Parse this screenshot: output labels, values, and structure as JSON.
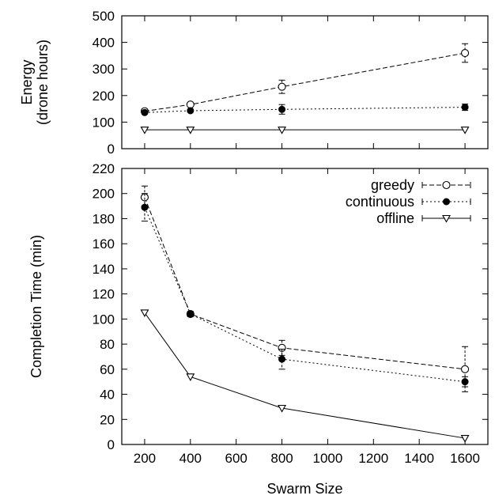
{
  "chart_data": [
    {
      "type": "line",
      "title": "",
      "ylabel": [
        "Energy",
        "(drone hours)"
      ],
      "xlabel": "",
      "xlim": [
        100,
        1700
      ],
      "ylim": [
        0,
        500
      ],
      "x_ticks": [
        200,
        400,
        600,
        800,
        1000,
        1200,
        1400,
        1600
      ],
      "y_ticks": [
        0,
        100,
        200,
        300,
        400,
        500
      ],
      "show_x_tick_labels": false,
      "grid": false,
      "x": [
        200,
        400,
        800,
        1600
      ],
      "series": [
        {
          "name": "greedy",
          "style": "dashed",
          "marker": "open-circle",
          "values": [
            141,
            166,
            233,
            360
          ],
          "err": [
            7,
            6,
            25,
            35
          ]
        },
        {
          "name": "continuous",
          "style": "dotted",
          "marker": "filled-circle",
          "values": [
            136,
            143,
            148,
            156
          ],
          "err": [
            6,
            5,
            18,
            12
          ]
        },
        {
          "name": "offline",
          "style": "solid",
          "marker": "open-triangle",
          "values": [
            71,
            71,
            71,
            71
          ],
          "err": [
            0,
            0,
            0,
            0
          ]
        }
      ]
    },
    {
      "type": "line",
      "title": "",
      "ylabel": "Completion Time (min)",
      "xlabel": "Swarm Size",
      "xlim": [
        100,
        1700
      ],
      "ylim": [
        0,
        220
      ],
      "x_ticks": [
        200,
        400,
        600,
        800,
        1000,
        1200,
        1400,
        1600
      ],
      "y_ticks": [
        0,
        20,
        40,
        60,
        80,
        100,
        120,
        140,
        160,
        180,
        200,
        220
      ],
      "show_x_tick_labels": true,
      "grid": false,
      "legend": "top-right",
      "x": [
        200,
        400,
        800,
        1600
      ],
      "series": [
        {
          "name": "greedy",
          "style": "dashed",
          "marker": "open-circle",
          "values": [
            197,
            104,
            77,
            60
          ],
          "err": [
            9,
            2,
            6,
            18
          ]
        },
        {
          "name": "continuous",
          "style": "dotted",
          "marker": "filled-circle",
          "values": [
            189,
            104,
            68,
            50
          ],
          "err": [
            11,
            2,
            8,
            4
          ]
        },
        {
          "name": "offline",
          "style": "solid",
          "marker": "open-triangle",
          "values": [
            105,
            54,
            29,
            5
          ],
          "err": [
            0,
            0,
            0,
            0
          ]
        }
      ]
    }
  ]
}
